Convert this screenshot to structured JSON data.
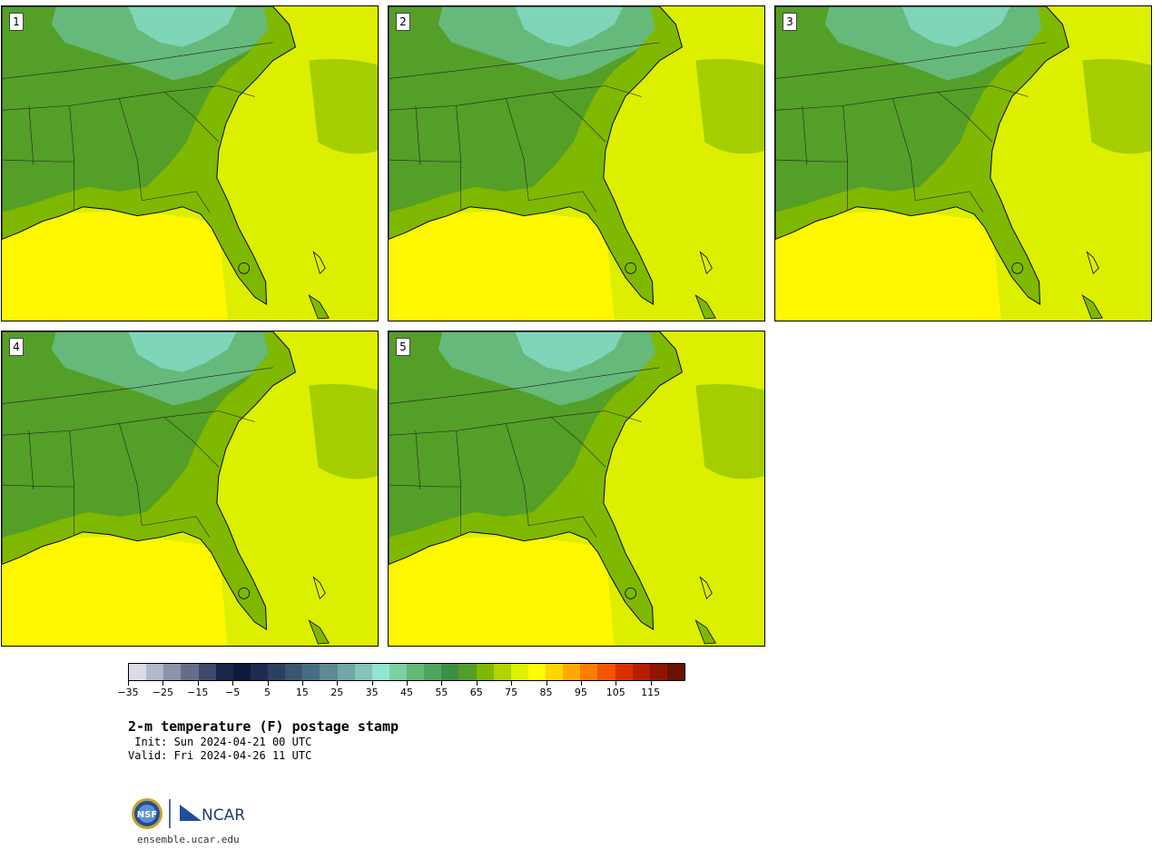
{
  "panels": [
    {
      "label": "1"
    },
    {
      "label": "2"
    },
    {
      "label": "3"
    },
    {
      "label": "4"
    },
    {
      "label": "5"
    }
  ],
  "colorbar": {
    "colors": [
      "#d9dde3",
      "#b4b8c8",
      "#8d93a8",
      "#656e8b",
      "#3f4a6c",
      "#1a254b",
      "#0e1a3a",
      "#1c2b4f",
      "#2a405f",
      "#375670",
      "#476e80",
      "#5d8a93",
      "#72a7a7",
      "#84c4b8",
      "#91e6cf",
      "#7fcea4",
      "#65b97b",
      "#4fa55d",
      "#3d9142",
      "#549f27",
      "#7fb800",
      "#b3d200",
      "#def200",
      "#ffff00",
      "#ffd500",
      "#ffaa00",
      "#ff7c00",
      "#f25500",
      "#d93000",
      "#b81d00",
      "#931500",
      "#6b1100"
    ],
    "ticks": [
      "−35",
      "−25",
      "−15",
      "−5",
      "5",
      "15",
      "25",
      "35",
      "45",
      "55",
      "65",
      "75",
      "85",
      "95",
      "105",
      "115"
    ]
  },
  "title": "2-m temperature (F) postage stamp",
  "init": " Init: Sun 2024-04-21 00 UTC",
  "valid": "Valid: Fri 2024-04-26 11 UTC",
  "logo": {
    "left_text": "NSF",
    "right_text": "NCAR"
  },
  "site": "ensemble.ucar.edu"
}
